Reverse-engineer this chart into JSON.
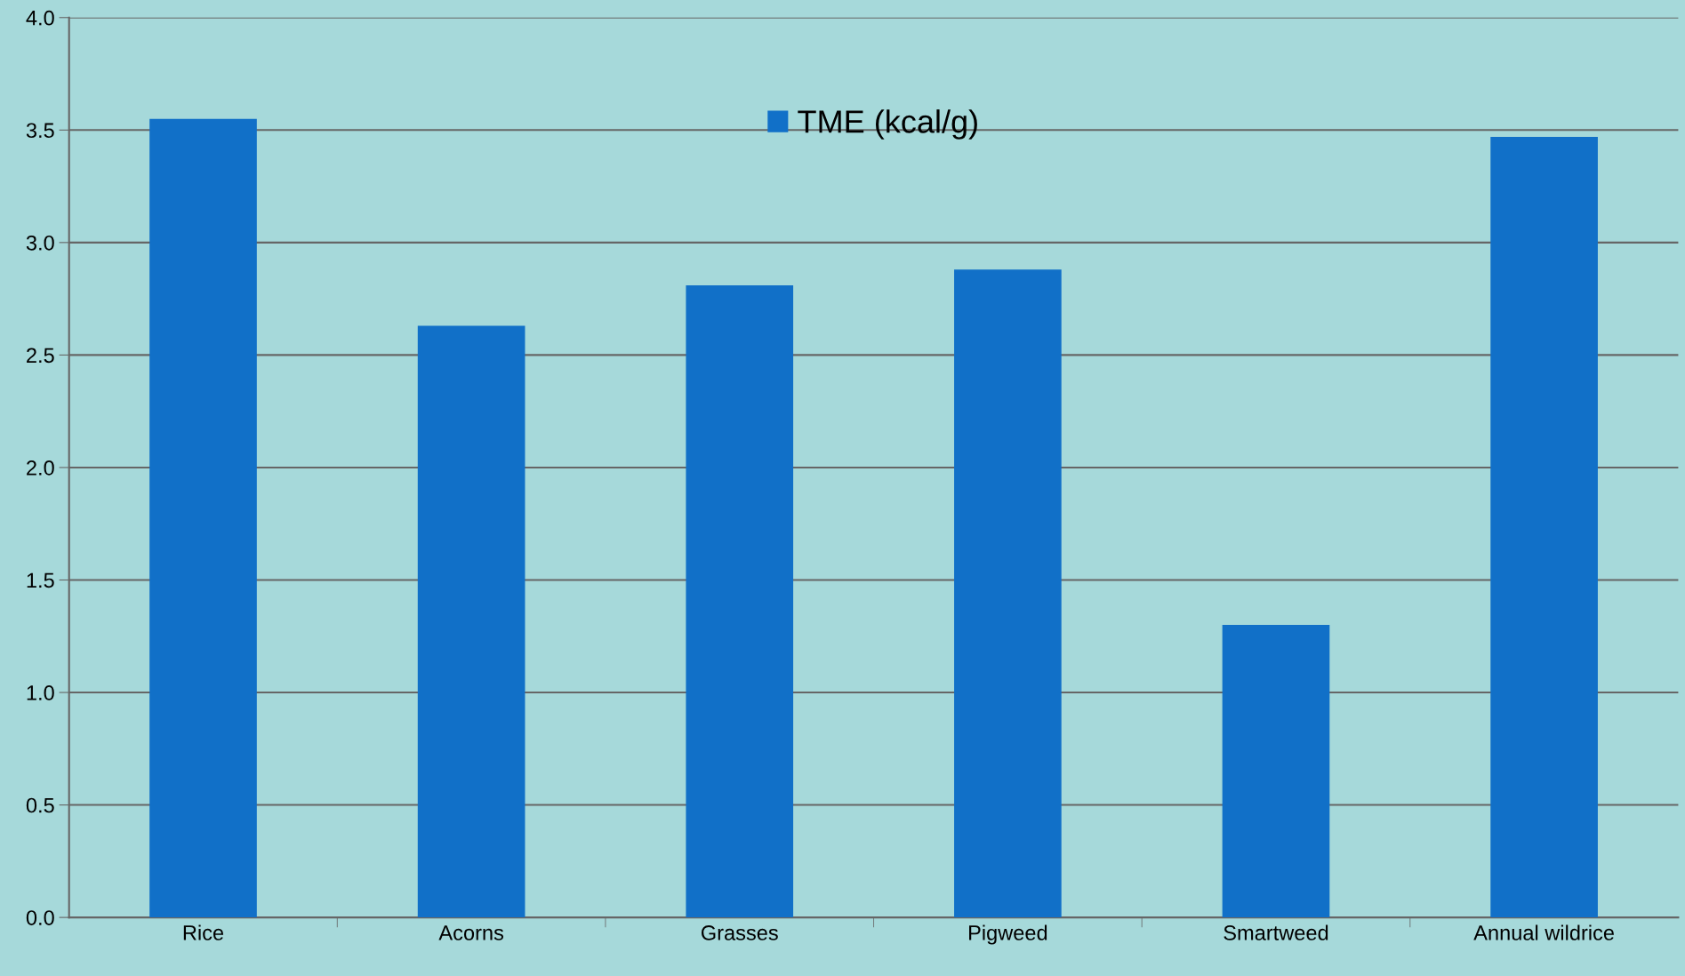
{
  "chart_data": {
    "type": "bar",
    "categories": [
      "Rice",
      "Acorns",
      "Grasses",
      "Pigweed",
      "Smartweed",
      "Annual wildrice"
    ],
    "series": [
      {
        "name": "TME (kcal/g)",
        "color": "#1170c8",
        "values": [
          3.55,
          2.63,
          2.81,
          2.88,
          1.3,
          3.47
        ]
      }
    ],
    "ylim": [
      0,
      4
    ],
    "yticks": [
      {
        "value": 0,
        "label": "0.0"
      },
      {
        "value": 0.5,
        "label": "0.5"
      },
      {
        "value": 1,
        "label": "1.0"
      },
      {
        "value": 1.5,
        "label": "1.5"
      },
      {
        "value": 2,
        "label": "2.0"
      },
      {
        "value": 2.5,
        "label": "2.5"
      },
      {
        "value": 3,
        "label": "3.0"
      },
      {
        "value": 3.5,
        "label": "3.5"
      },
      {
        "value": 4,
        "label": "4.0"
      }
    ],
    "grid": "y",
    "legend": "top"
  }
}
